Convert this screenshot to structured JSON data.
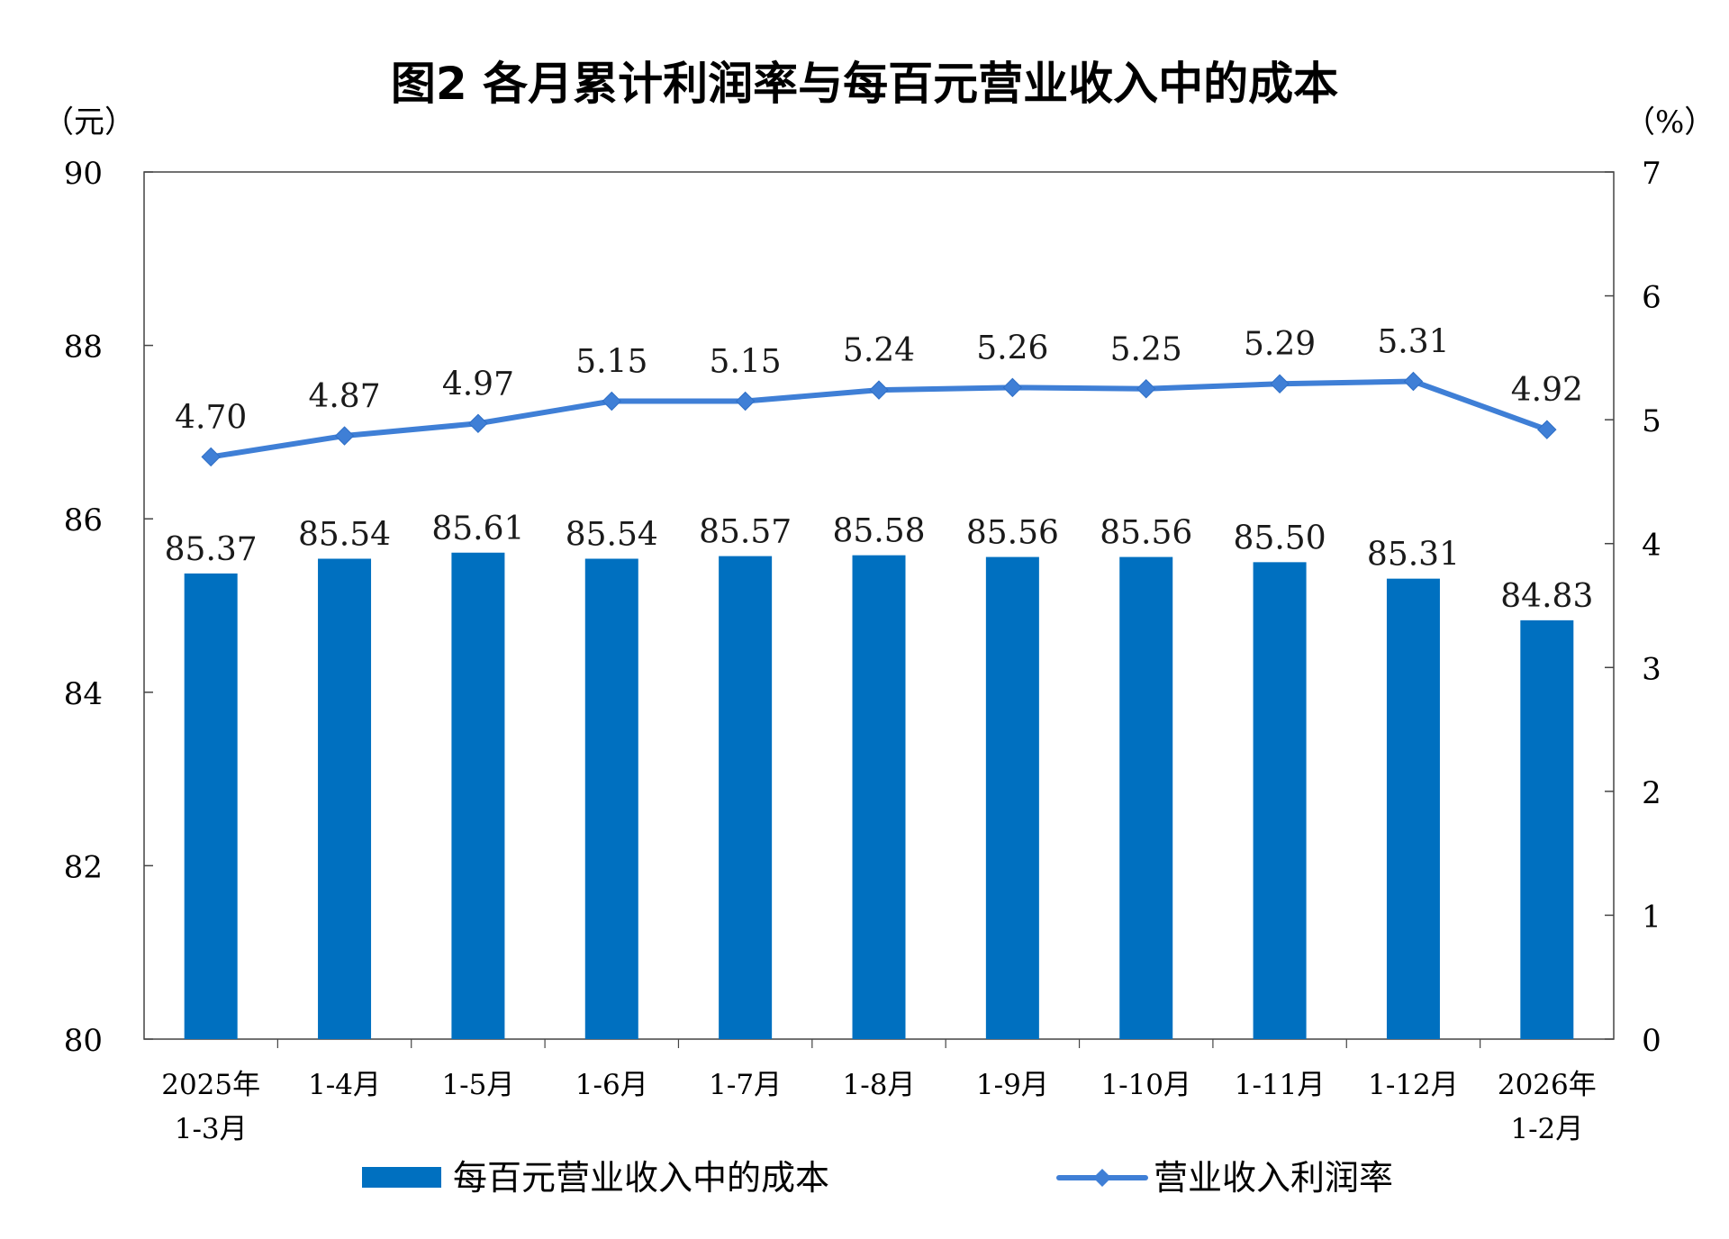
{
  "chart_data": {
    "type": "bar",
    "title": "图2  各月累计利润率与每百元营业收入中的成本",
    "left_axis_unit": "（元）",
    "right_axis_unit": "（%）",
    "categories": [
      "2025年\n1-3月",
      "1-4月",
      "1-5月",
      "1-6月",
      "1-7月",
      "1-8月",
      "1-9月",
      "1-10月",
      "1-11月",
      "1-12月",
      "2026年\n1-2月"
    ],
    "series": [
      {
        "name": "每百元营业收入中的成本",
        "type": "bar",
        "axis": "left",
        "color": "#0070c0",
        "values": [
          85.37,
          85.54,
          85.61,
          85.54,
          85.57,
          85.58,
          85.56,
          85.56,
          85.5,
          85.31,
          84.83
        ],
        "labels": [
          "85.37",
          "85.54",
          "85.61",
          "85.54",
          "85.57",
          "85.58",
          "85.56",
          "85.56",
          "85.50",
          "85.31",
          "84.83"
        ]
      },
      {
        "name": "营业收入利润率",
        "type": "line",
        "axis": "right",
        "color": "#3f7fd6",
        "marker": "diamond",
        "values": [
          4.7,
          4.87,
          4.97,
          5.15,
          5.15,
          5.24,
          5.26,
          5.25,
          5.29,
          5.31,
          4.92
        ],
        "labels": [
          "4.70",
          "4.87",
          "4.97",
          "5.15",
          "5.15",
          "5.24",
          "5.26",
          "5.25",
          "5.29",
          "5.31",
          "4.92"
        ]
      }
    ],
    "y_left": {
      "min": 80,
      "max": 90,
      "ticks": [
        80,
        82,
        84,
        86,
        88,
        90
      ]
    },
    "y_right": {
      "min": 0,
      "max": 7,
      "ticks": [
        0,
        1,
        2,
        3,
        4,
        5,
        6,
        7
      ]
    },
    "grid": false,
    "legend": "bottom"
  }
}
